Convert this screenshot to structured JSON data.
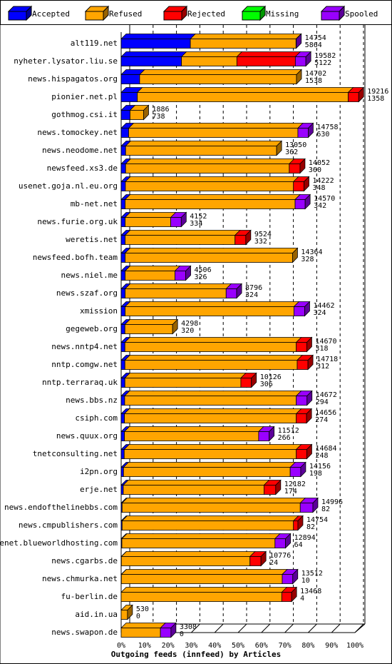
{
  "chart_data": {
    "type": "bar",
    "orientation": "horizontal",
    "stacked": true,
    "title": "Outgoing feeds (innfeed) by Articles",
    "xlabel": "Outgoing feeds (innfeed) by Articles",
    "xlim": [
      0,
      100
    ],
    "grid": true,
    "legend_position": "top",
    "x_ticks": [
      "0%",
      "10%",
      "20%",
      "30%",
      "40%",
      "50%",
      "60%",
      "70%",
      "80%",
      "90%",
      "100%"
    ],
    "legend": [
      {
        "name": "Accepted",
        "color": "#0000ff"
      },
      {
        "name": "Refused",
        "color": "#ffa500"
      },
      {
        "name": "Rejected",
        "color": "#ff0000"
      },
      {
        "name": "Missing",
        "color": "#00ff00"
      },
      {
        "name": "Spooled",
        "color": "#9900ff"
      }
    ],
    "categories": [
      "alt119.net",
      "nyheter.lysator.liu.se",
      "news.hispagatos.org",
      "pionier.net.pl",
      "gothmog.csi.it",
      "news.tomockey.net",
      "news.neodome.net",
      "newsfeed.xs3.de",
      "usenet.goja.nl.eu.org",
      "mb-net.net",
      "news.furie.org.uk",
      "weretis.net",
      "newsfeed.bofh.team",
      "news.niel.me",
      "news.szaf.org",
      "xmission",
      "gegeweb.org",
      "news.nntp4.net",
      "nntp.comgw.net",
      "nntp.terraraq.uk",
      "news.bbs.nz",
      "csiph.com",
      "news.quux.org",
      "tnetconsulting.net",
      "i2pn.org",
      "erje.net",
      "news.endofthelinebbs.com",
      "news.cmpublishers.com",
      "usenet.blueworldhosting.com",
      "news.cgarbs.de",
      "news.chmurka.net",
      "fu-berlin.de",
      "aid.in.ua",
      "news.swapon.de"
    ],
    "offered": [
      "14754",
      "19582",
      "14702",
      "19216",
      "1886",
      "14758",
      "13050",
      "14052",
      "14222",
      "14570",
      "4152",
      "9524",
      "14364",
      "4506",
      "8796",
      "14462",
      "4298",
      "14670",
      "14718",
      "10126",
      "14672",
      "14656",
      "11512",
      "14684",
      "14156",
      "12182",
      "14996",
      "14754",
      "12894",
      "10776",
      "13512",
      "13468",
      "530",
      "3308"
    ],
    "accepted_count": [
      "5864",
      "5122",
      "1538",
      "1358",
      "738",
      "630",
      "362",
      "360",
      "348",
      "342",
      "334",
      "332",
      "328",
      "326",
      "324",
      "324",
      "320",
      "318",
      "312",
      "306",
      "294",
      "274",
      "266",
      "248",
      "198",
      "174",
      "82",
      "82",
      "64",
      "24",
      "10",
      "4",
      "0",
      "0"
    ],
    "series": [
      {
        "name": "Accepted",
        "color": "#0000ff",
        "values": [
          29.6,
          25.8,
          7.9,
          6.9,
          3.8,
          3.2,
          1.9,
          1.9,
          1.8,
          1.7,
          1.7,
          1.7,
          1.7,
          1.7,
          1.7,
          1.7,
          1.6,
          1.6,
          1.6,
          1.6,
          1.5,
          1.4,
          1.4,
          1.3,
          1.0,
          0.9,
          0.4,
          0.4,
          0.3,
          0.1,
          0.1,
          0.0,
          0.0,
          0.0
        ]
      },
      {
        "name": "Refused",
        "color": "#ffa500",
        "values": [
          45.2,
          23.7,
          67.1,
          90.2,
          5.8,
          72.4,
          64.6,
          70.0,
          71.9,
          72.7,
          19.5,
          47.0,
          71.6,
          21.3,
          43.2,
          72.2,
          20.4,
          73.3,
          73.7,
          49.6,
          73.4,
          73.5,
          57.4,
          73.6,
          71.3,
          60.2,
          76.2,
          73.3,
          65.5,
          55.0,
          68.8,
          68.7,
          2.7,
          16.8
        ]
      },
      {
        "name": "Rejected",
        "color": "#ff0000",
        "values": [
          0,
          25.0,
          0,
          4.5,
          0,
          0,
          0,
          4.6,
          4.5,
          0,
          0,
          4.6,
          0,
          0,
          0,
          0,
          0,
          4.5,
          4.6,
          4.5,
          0,
          4.4,
          0,
          4.5,
          0,
          5.0,
          0,
          1.9,
          0,
          4.7,
          0,
          4.2,
          0,
          0
        ]
      },
      {
        "name": "Missing",
        "color": "#00ff00",
        "values": [
          0,
          0,
          0,
          0,
          0,
          0,
          0,
          0,
          0,
          0,
          0,
          0,
          0,
          0,
          0,
          0,
          0,
          0,
          0,
          0,
          0,
          0,
          0,
          0,
          0,
          0,
          0,
          0,
          0,
          0,
          0,
          0,
          0,
          0
        ]
      },
      {
        "name": "Spooled",
        "color": "#9900ff",
        "values": [
          0.1,
          4.5,
          0,
          0,
          0,
          4.4,
          0,
          0,
          0,
          4.3,
          4.5,
          0,
          0,
          4.6,
          4.5,
          4.6,
          0,
          0,
          0,
          0,
          4.6,
          0,
          4.5,
          0,
          4.5,
          0,
          5.4,
          0,
          4.5,
          0,
          4.5,
          0,
          0,
          4.5
        ]
      }
    ]
  }
}
